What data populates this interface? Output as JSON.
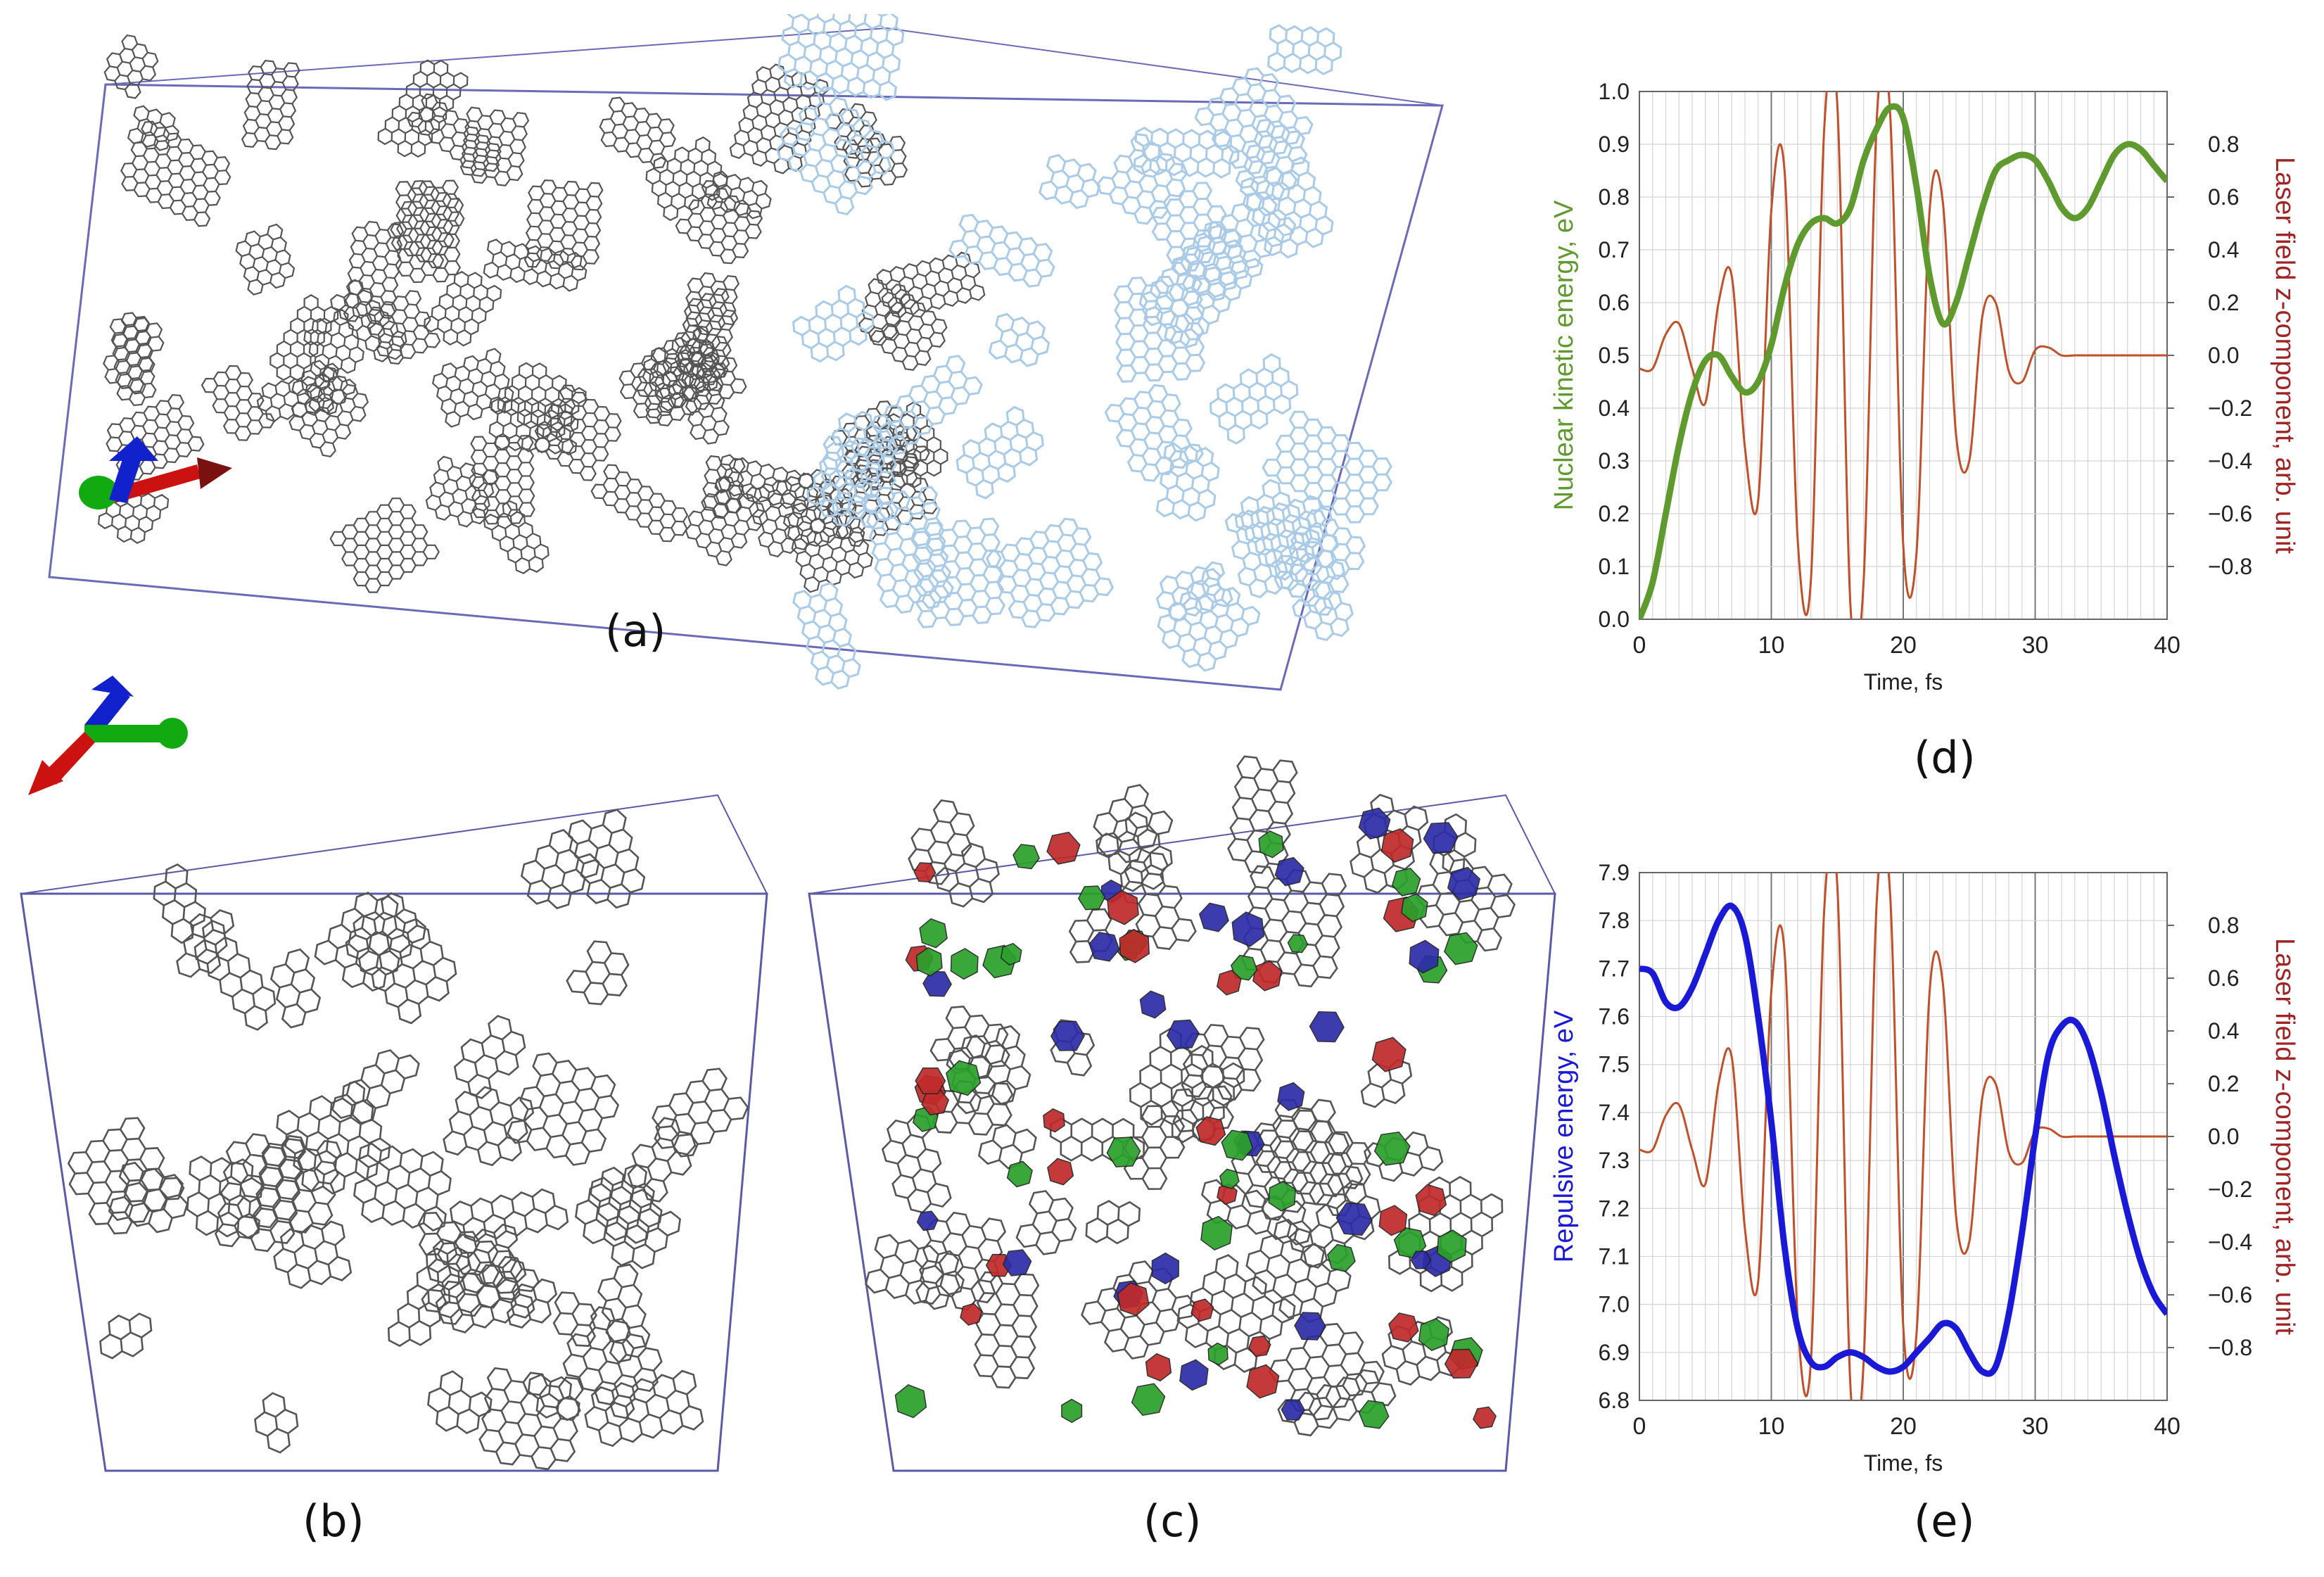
{
  "panel_labels": {
    "a": "(a)",
    "b": "(b)",
    "c": "(c)",
    "d": "(d)",
    "e": "(e)"
  },
  "colors": {
    "kinetic": "#5f9a2e",
    "repulsive": "#1a1ad6",
    "laser": "#c0502a",
    "laser_axis_label": "#a02424",
    "atoms_grey": "#555555",
    "atoms_blue": "#a9cbe8",
    "box": "#3a3aa0",
    "face_blue": "#2c2ca8",
    "face_red": "#c02a2a",
    "face_green": "#2aa02a",
    "axis_red": "#cc1111",
    "axis_green": "#11aa11",
    "axis_blue": "#1122cc"
  },
  "chart_data": [
    {
      "type": "line",
      "panel": "(d)",
      "xlabel": "Time, fs",
      "ylabel": "Nuclear kinetic energy, eV",
      "y2label": "Laser field z-component, arb. unit",
      "xlim": [
        0,
        40
      ],
      "ylim": [
        0,
        1.0
      ],
      "y2lim": [
        -1.0,
        1.0
      ],
      "xticks": [
        "0",
        "10",
        "20",
        "30",
        "40"
      ],
      "yticks": [
        "0.0",
        "0.1",
        "0.2",
        "0.3",
        "0.4",
        "0.5",
        "0.6",
        "0.7",
        "0.8",
        "0.9",
        "1.0"
      ],
      "y2ticks": [
        "-0.8",
        "-0.6",
        "-0.4",
        "-0.2",
        "0.0",
        "0.2",
        "0.4",
        "0.6",
        "0.8"
      ],
      "series": [
        {
          "axis": "left",
          "x": [
            0,
            1,
            2,
            3,
            4,
            5,
            6,
            7,
            8,
            9,
            10,
            11,
            12,
            13,
            14,
            15,
            16,
            17,
            18,
            19,
            20,
            21,
            22,
            23,
            24,
            25,
            26,
            27,
            28,
            29,
            30,
            31,
            32,
            33,
            34,
            35,
            36,
            37,
            38,
            39,
            40
          ],
          "y": [
            0.0,
            0.07,
            0.2,
            0.33,
            0.43,
            0.49,
            0.5,
            0.46,
            0.43,
            0.45,
            0.52,
            0.63,
            0.71,
            0.75,
            0.76,
            0.75,
            0.78,
            0.87,
            0.93,
            0.97,
            0.95,
            0.82,
            0.65,
            0.56,
            0.6,
            0.69,
            0.78,
            0.85,
            0.87,
            0.88,
            0.87,
            0.83,
            0.78,
            0.76,
            0.78,
            0.83,
            0.88,
            0.9,
            0.89,
            0.86,
            0.83
          ]
        },
        {
          "axis": "right",
          "x": [
            0,
            1,
            2,
            3,
            4,
            5,
            6,
            7,
            8,
            9,
            10,
            11,
            12,
            13,
            14,
            15,
            16,
            17,
            18,
            19,
            20,
            21,
            22,
            23,
            24,
            25,
            26,
            27,
            28,
            29,
            30,
            31,
            32,
            33,
            34,
            35,
            36,
            37,
            38,
            39,
            40
          ],
          "y": [
            -0.05,
            -0.05,
            0.08,
            0.12,
            -0.05,
            -0.18,
            0.2,
            0.3,
            -0.35,
            -0.55,
            0.55,
            0.7,
            -0.7,
            -0.85,
            0.85,
            0.95,
            -0.95,
            -0.85,
            0.9,
            0.92,
            -0.72,
            -0.75,
            0.55,
            0.58,
            -0.3,
            -0.4,
            0.15,
            0.2,
            -0.06,
            -0.1,
            0.02,
            0.03,
            0.0,
            0.0,
            0.0,
            0.0,
            0.0,
            0.0,
            0.0,
            0.0,
            0.0
          ]
        }
      ]
    },
    {
      "type": "line",
      "panel": "(e)",
      "xlabel": "Time, fs",
      "ylabel": "Repulsive energy, eV",
      "y2label": "Laser field z-component, arb. unit",
      "xlim": [
        0,
        40
      ],
      "ylim": [
        6.8,
        7.9
      ],
      "y2lim": [
        -1.0,
        1.0
      ],
      "xticks": [
        "0",
        "10",
        "20",
        "30",
        "40"
      ],
      "yticks": [
        "6.8",
        "6.9",
        "7.0",
        "7.1",
        "7.2",
        "7.3",
        "7.4",
        "7.5",
        "7.6",
        "7.7",
        "7.8",
        "7.9"
      ],
      "y2ticks": [
        "-0.8",
        "-0.6",
        "-0.4",
        "-0.2",
        "0.0",
        "0.2",
        "0.4",
        "0.6",
        "0.8"
      ],
      "series": [
        {
          "axis": "left",
          "x": [
            0,
            1,
            2,
            3,
            4,
            5,
            6,
            7,
            8,
            9,
            10,
            11,
            12,
            13,
            14,
            15,
            16,
            17,
            18,
            19,
            20,
            21,
            22,
            23,
            24,
            25,
            26,
            27,
            28,
            29,
            30,
            31,
            32,
            33,
            34,
            35,
            36,
            37,
            38,
            39,
            40
          ],
          "y": [
            7.7,
            7.69,
            7.63,
            7.62,
            7.66,
            7.73,
            7.8,
            7.83,
            7.77,
            7.6,
            7.38,
            7.12,
            6.95,
            6.88,
            6.87,
            6.89,
            6.9,
            6.89,
            6.87,
            6.86,
            6.87,
            6.9,
            6.93,
            6.96,
            6.95,
            6.9,
            6.86,
            6.87,
            6.98,
            7.15,
            7.35,
            7.52,
            7.58,
            7.59,
            7.54,
            7.44,
            7.31,
            7.19,
            7.09,
            7.02,
            6.98
          ]
        },
        {
          "axis": "right",
          "x": [
            0,
            1,
            2,
            3,
            4,
            5,
            6,
            7,
            8,
            9,
            10,
            11,
            12,
            13,
            14,
            15,
            16,
            17,
            18,
            19,
            20,
            21,
            22,
            23,
            24,
            25,
            26,
            27,
            28,
            29,
            30,
            31,
            32,
            33,
            34,
            35,
            36,
            37,
            38,
            39,
            40
          ],
          "y": [
            -0.05,
            -0.05,
            0.08,
            0.12,
            -0.05,
            -0.18,
            0.2,
            0.3,
            -0.35,
            -0.55,
            0.55,
            0.7,
            -0.7,
            -0.85,
            0.85,
            0.95,
            -0.95,
            -0.85,
            0.9,
            0.92,
            -0.72,
            -0.75,
            0.55,
            0.58,
            -0.3,
            -0.4,
            0.15,
            0.2,
            -0.06,
            -0.1,
            0.02,
            0.03,
            0.0,
            0.0,
            0.0,
            0.0,
            0.0,
            0.0,
            0.0,
            0.0,
            0.0
          ]
        }
      ]
    }
  ]
}
